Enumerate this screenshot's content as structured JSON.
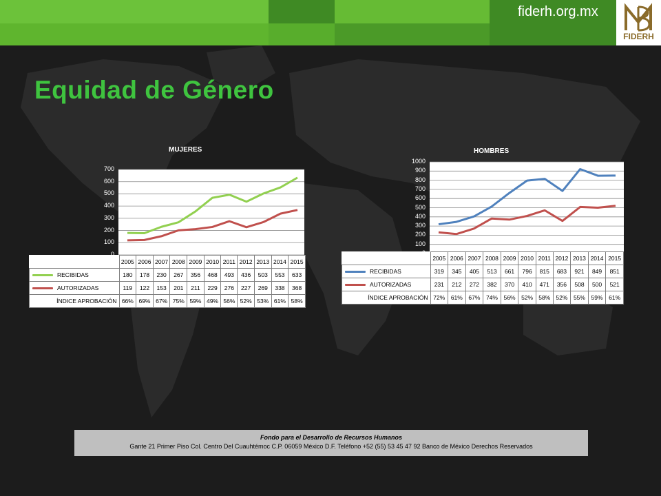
{
  "header": {
    "site": "fiderh.org.mx",
    "logo_text": "FIDERH"
  },
  "page_title": "Equidad de Género",
  "chart_data": [
    {
      "type": "line",
      "title": "MUJERES",
      "categories": [
        "2005",
        "2006",
        "2007",
        "2008",
        "2009",
        "2010",
        "2011",
        "2012",
        "2013",
        "2014",
        "2015"
      ],
      "ylim": [
        0,
        700
      ],
      "yticks": [
        0,
        100,
        200,
        300,
        400,
        500,
        600,
        700
      ],
      "grid": true,
      "series": [
        {
          "name": "RECIBIDAS",
          "color": "#92d050",
          "values": [
            180,
            178,
            230,
            267,
            356,
            468,
            493,
            436,
            503,
            553,
            633
          ]
        },
        {
          "name": "AUTORIZADAS",
          "color": "#c0504d",
          "values": [
            119,
            122,
            153,
            201,
            211,
            229,
            276,
            227,
            269,
            338,
            368
          ]
        }
      ],
      "table_rows": [
        {
          "label": "ÍNDICE APROBACIÓN",
          "values": [
            "66%",
            "69%",
            "67%",
            "75%",
            "59%",
            "49%",
            "56%",
            "52%",
            "53%",
            "61%",
            "58%"
          ]
        }
      ]
    },
    {
      "type": "line",
      "title": "HOMBRES",
      "categories": [
        "2005",
        "2006",
        "2007",
        "2008",
        "2009",
        "2010",
        "2011",
        "2012",
        "2013",
        "2014",
        "2015"
      ],
      "ylim": [
        0,
        1000
      ],
      "yticks": [
        0,
        100,
        200,
        300,
        400,
        500,
        600,
        700,
        800,
        900,
        1000
      ],
      "grid": true,
      "series": [
        {
          "name": "RECIBIDAS",
          "color": "#4f81bd",
          "values": [
            319,
            345,
            405,
            513,
            661,
            796,
            815,
            683,
            921,
            849,
            851
          ]
        },
        {
          "name": "AUTORIZADAS",
          "color": "#c0504d",
          "values": [
            231,
            212,
            272,
            382,
            370,
            410,
            471,
            356,
            508,
            500,
            521
          ]
        }
      ],
      "table_rows": [
        {
          "label": "ÍNDICE APROBACIÓN",
          "values": [
            "72%",
            "61%",
            "67%",
            "74%",
            "56%",
            "52%",
            "58%",
            "52%",
            "55%",
            "59%",
            "61%"
          ]
        }
      ]
    }
  ],
  "footer": {
    "line1": "Fondo para el Desarrollo de Recursos Humanos",
    "line2": "Gante 21 Primer Piso Col. Centro Del Cuauhtémoc C.P. 06059 México D.F. Teléfono +52 (55) 53 45 47 92 Banco de México Derechos Reservados"
  }
}
